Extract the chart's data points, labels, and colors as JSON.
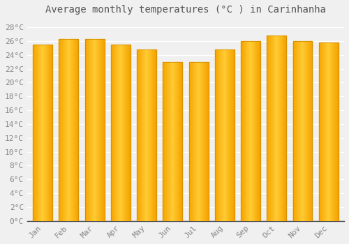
{
  "months": [
    "Jan",
    "Feb",
    "Mar",
    "Apr",
    "May",
    "Jun",
    "Jul",
    "Aug",
    "Sep",
    "Oct",
    "Nov",
    "Dec"
  ],
  "temperatures": [
    25.5,
    26.3,
    26.3,
    25.5,
    24.8,
    23.0,
    23.0,
    24.8,
    26.0,
    26.8,
    26.0,
    25.8
  ],
  "bar_color_center": "#FFCC33",
  "bar_color_edge": "#F5A400",
  "title": "Average monthly temperatures (°C ) in Carinhanha",
  "ylim_min": 0,
  "ylim_max": 29,
  "ytick_step": 2,
  "background_color": "#f0f0f0",
  "plot_bg_color": "#f0f0f0",
  "grid_color": "#ffffff",
  "axis_color": "#333333",
  "label_color": "#888888",
  "title_fontsize": 10,
  "tick_fontsize": 8,
  "font_family": "monospace",
  "bar_width": 0.75
}
